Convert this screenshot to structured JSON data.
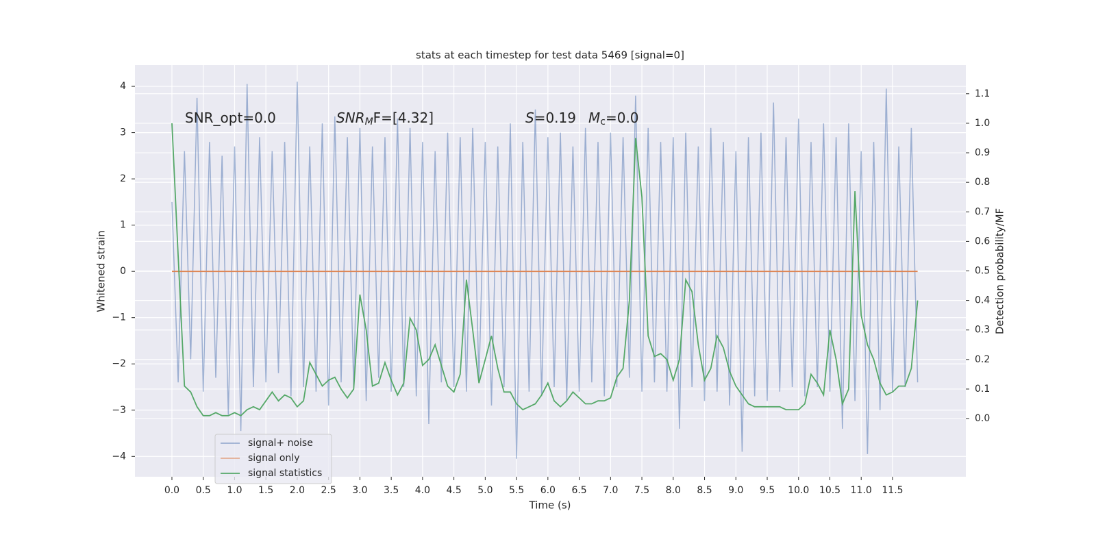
{
  "chart_data": {
    "type": "line",
    "title": "stats at each timestep for test data 5469 [signal=0]",
    "xlabel": "Time (s)",
    "ylabel": "Whitened strain",
    "y2label": "Detection probability/MF",
    "annotations": [
      [
        "SNR_opt=0.0"
      ],
      [
        "SNR",
        "M",
        "F=[4.32]"
      ],
      [
        "S",
        "=0.19"
      ],
      [
        "M",
        "c",
        "=0.0"
      ]
    ],
    "grid": true,
    "legend": "lower left",
    "xlim": [
      -0.59,
      12.67
    ],
    "ylim": [
      -4.44,
      4.46
    ],
    "y2lim": [
      -0.197,
      1.197
    ],
    "xticks": [
      {
        "value": 0,
        "label": "0.0"
      },
      0.5,
      {
        "value": 1,
        "label": "1.0"
      },
      1.5,
      {
        "value": 2,
        "label": "2.0"
      },
      2.5,
      {
        "value": 3,
        "label": "3.0"
      },
      3.5,
      {
        "value": 4,
        "label": "4.0"
      },
      4.5,
      {
        "value": 5,
        "label": "5.0"
      },
      5.5,
      {
        "value": 6,
        "label": "6.0"
      },
      6.5,
      {
        "value": 7,
        "label": "7.0"
      },
      7.5,
      {
        "value": 8,
        "label": "8.0"
      },
      8.5,
      {
        "value": 9,
        "label": "9.0"
      },
      9.5,
      {
        "value": 10,
        "label": "10.0"
      },
      10.5,
      {
        "value": 11,
        "label": "11.0"
      },
      11.5
    ],
    "yticks": [
      {
        "value": -4,
        "label": "−4"
      },
      {
        "value": -3,
        "label": "−3"
      },
      {
        "value": -2,
        "label": "−2"
      },
      {
        "value": -1,
        "label": "−1"
      },
      0,
      1,
      2,
      3,
      4
    ],
    "y2ticks": [
      {
        "value": 0,
        "label": "0.0"
      },
      0.1,
      0.2,
      0.3,
      0.4,
      0.5,
      0.6,
      0.7,
      0.8,
      0.9,
      {
        "value": 1,
        "label": "1.0"
      },
      1.1
    ],
    "x": [
      0.0,
      0.1,
      0.2,
      0.3,
      0.4,
      0.5,
      0.6,
      0.7,
      0.8,
      0.9,
      1.0,
      1.1,
      1.2,
      1.3,
      1.4,
      1.5,
      1.6,
      1.7,
      1.8,
      1.9,
      2.0,
      2.1,
      2.2,
      2.3,
      2.4,
      2.5,
      2.6,
      2.7,
      2.8,
      2.9,
      3.0,
      3.1,
      3.2,
      3.3,
      3.4,
      3.5,
      3.6,
      3.7,
      3.8,
      3.9,
      4.0,
      4.1,
      4.2,
      4.3,
      4.4,
      4.5,
      4.6,
      4.7,
      4.8,
      4.9,
      5.0,
      5.1,
      5.2,
      5.3,
      5.4,
      5.5,
      5.6,
      5.7,
      5.8,
      5.9,
      6.0,
      6.1,
      6.2,
      6.3,
      6.4,
      6.5,
      6.6,
      6.7,
      6.8,
      6.9,
      7.0,
      7.1,
      7.2,
      7.3,
      7.4,
      7.5,
      7.6,
      7.7,
      7.8,
      7.9,
      8.0,
      8.1,
      8.2,
      8.3,
      8.4,
      8.5,
      8.6,
      8.7,
      8.8,
      8.9,
      9.0,
      9.1,
      9.2,
      9.3,
      9.4,
      9.5,
      9.6,
      9.7,
      9.8,
      9.9,
      10.0,
      10.1,
      10.2,
      10.3,
      10.4,
      10.5,
      10.6,
      10.7,
      10.8,
      10.9,
      11.0,
      11.1,
      11.2,
      11.3,
      11.4,
      11.5,
      11.6,
      11.7,
      11.8,
      11.9
    ],
    "series": [
      {
        "name": "signal+ noise",
        "color": "#4c72b0",
        "values": [
          1.5,
          -2.4,
          2.6,
          -1.9,
          3.75,
          -2.6,
          2.8,
          -2.3,
          2.5,
          -3.1,
          2.7,
          -3.45,
          4.05,
          -2.5,
          2.9,
          -2.4,
          2.6,
          -2.2,
          2.8,
          -2.7,
          4.1,
          -2.5,
          2.7,
          -2.6,
          3.2,
          -2.9,
          3.35,
          -2.4,
          2.9,
          -2.5,
          3.1,
          -2.8,
          2.7,
          -2.3,
          2.9,
          -2.6,
          3.3,
          -2.5,
          3.1,
          -2.7,
          2.8,
          -3.3,
          2.6,
          -2.4,
          3.0,
          -2.5,
          2.9,
          -2.6,
          3.1,
          -2.4,
          2.8,
          -2.9,
          2.7,
          -2.5,
          3.2,
          -4.05,
          2.8,
          -2.6,
          3.5,
          -2.7,
          2.9,
          -2.5,
          3.0,
          -2.8,
          2.7,
          -2.6,
          3.1,
          -2.4,
          2.8,
          -2.7,
          3.0,
          -2.5,
          2.9,
          -2.3,
          3.8,
          -2.6,
          3.1,
          -2.4,
          2.8,
          -2.6,
          2.9,
          -3.4,
          3.0,
          -2.5,
          2.7,
          -2.8,
          3.1,
          -2.6,
          2.8,
          -2.9,
          2.6,
          -3.9,
          2.9,
          -2.7,
          3.0,
          -2.8,
          3.65,
          -2.6,
          2.9,
          -2.5,
          3.3,
          -2.7,
          2.8,
          -2.5,
          3.2,
          -2.6,
          2.9,
          -3.4,
          3.2,
          -2.8,
          2.6,
          -3.95,
          2.8,
          -3.0,
          3.95,
          -2.6,
          2.7,
          -2.5,
          3.1,
          -2.4
        ]
      },
      {
        "name": "signal only",
        "color": "#dd8452",
        "x": [
          0.0,
          11.9
        ],
        "values": [
          0,
          0
        ]
      },
      {
        "name": "signal statistics",
        "color": "#55a868",
        "axis": "y2",
        "values": [
          1.0,
          0.55,
          0.11,
          0.09,
          0.04,
          0.01,
          0.01,
          0.02,
          0.01,
          0.01,
          0.02,
          0.01,
          0.03,
          0.04,
          0.03,
          0.06,
          0.09,
          0.06,
          0.08,
          0.07,
          0.04,
          0.06,
          0.19,
          0.15,
          0.11,
          0.13,
          0.14,
          0.1,
          0.07,
          0.1,
          0.42,
          0.3,
          0.11,
          0.12,
          0.19,
          0.13,
          0.08,
          0.12,
          0.34,
          0.3,
          0.18,
          0.2,
          0.25,
          0.18,
          0.11,
          0.09,
          0.15,
          0.47,
          0.3,
          0.12,
          0.2,
          0.28,
          0.17,
          0.09,
          0.09,
          0.05,
          0.03,
          0.04,
          0.05,
          0.08,
          0.12,
          0.06,
          0.04,
          0.06,
          0.09,
          0.07,
          0.05,
          0.05,
          0.06,
          0.06,
          0.07,
          0.14,
          0.17,
          0.4,
          0.95,
          0.75,
          0.28,
          0.21,
          0.22,
          0.2,
          0.13,
          0.2,
          0.47,
          0.43,
          0.25,
          0.13,
          0.17,
          0.28,
          0.24,
          0.16,
          0.11,
          0.08,
          0.05,
          0.04,
          0.04,
          0.04,
          0.04,
          0.04,
          0.03,
          0.03,
          0.03,
          0.05,
          0.15,
          0.12,
          0.08,
          0.3,
          0.2,
          0.05,
          0.1,
          0.77,
          0.35,
          0.25,
          0.2,
          0.12,
          0.08,
          0.09,
          0.11,
          0.11,
          0.17,
          0.4
        ]
      }
    ]
  }
}
